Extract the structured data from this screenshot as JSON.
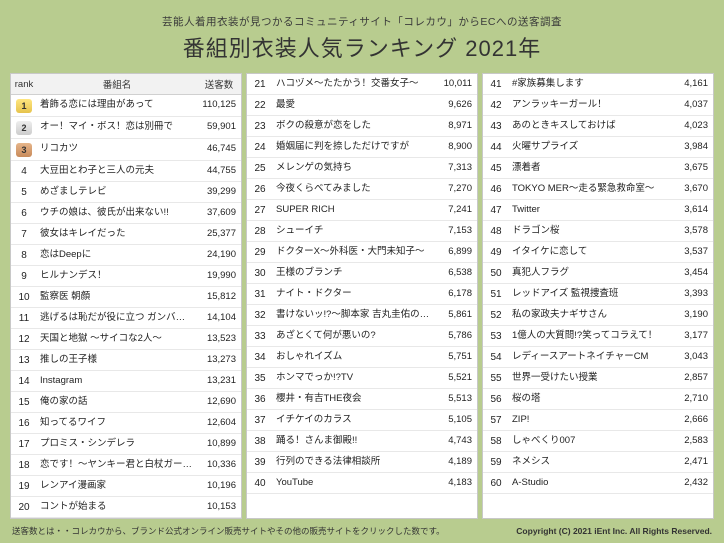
{
  "header": {
    "subtitle": "芸能人着用衣装が見つかるコミュニティサイト「コレカウ」からECへの送客調査",
    "title": "番組別衣装人気ランキング 2021年"
  },
  "columns_header": {
    "rank": "rank",
    "name": "番組名",
    "count": "送客数"
  },
  "rows": [
    {
      "rank": 1,
      "name": "着飾る恋には理由があって",
      "count": "110,125",
      "medal": "gold"
    },
    {
      "rank": 2,
      "name": "オー！マイ・ボス！恋は別冊で",
      "count": "59,901",
      "medal": "silver"
    },
    {
      "rank": 3,
      "name": "リコカツ",
      "count": "46,745",
      "medal": "bronze"
    },
    {
      "rank": 4,
      "name": "大豆田とわ子と三人の元夫",
      "count": "44,755"
    },
    {
      "rank": 5,
      "name": "めざましテレビ",
      "count": "39,299"
    },
    {
      "rank": 6,
      "name": "ウチの娘は、彼氏が出来ない!!",
      "count": "37,609"
    },
    {
      "rank": 7,
      "name": "彼女はキレイだった",
      "count": "25,377"
    },
    {
      "rank": 8,
      "name": "恋はDeepに",
      "count": "24,190"
    },
    {
      "rank": 9,
      "name": "ヒルナンデス！",
      "count": "19,990"
    },
    {
      "rank": 10,
      "name": "監察医 朝顔",
      "count": "15,812"
    },
    {
      "rank": 11,
      "name": "逃げるは恥だが役に立つ ガンバレ人類！新春スペシャル!!",
      "count": "14,104"
    },
    {
      "rank": 12,
      "name": "天国と地獄 ～サイコな2人～",
      "count": "13,523"
    },
    {
      "rank": 13,
      "name": "推しの王子様",
      "count": "13,273"
    },
    {
      "rank": 14,
      "name": "Instagram",
      "count": "13,231"
    },
    {
      "rank": 15,
      "name": "俺の家の話",
      "count": "12,690"
    },
    {
      "rank": 16,
      "name": "知ってるワイフ",
      "count": "12,604"
    },
    {
      "rank": 17,
      "name": "プロミス・シンデレラ",
      "count": "10,899"
    },
    {
      "rank": 18,
      "name": "恋です！～ヤンキー君と白杖ガール～",
      "count": "10,336"
    },
    {
      "rank": 19,
      "name": "レンアイ漫画家",
      "count": "10,196"
    },
    {
      "rank": 20,
      "name": "コントが始まる",
      "count": "10,153"
    },
    {
      "rank": 21,
      "name": "ハコヅメ～たたかう！交番女子～",
      "count": "10,011"
    },
    {
      "rank": 22,
      "name": "最愛",
      "count": "9,626"
    },
    {
      "rank": 23,
      "name": "ボクの殺意が恋をした",
      "count": "8,971"
    },
    {
      "rank": 24,
      "name": "婚姻届に判を捺しただけですが",
      "count": "8,900"
    },
    {
      "rank": 25,
      "name": "メレンゲの気持ち",
      "count": "7,313"
    },
    {
      "rank": 26,
      "name": "今夜くらべてみました",
      "count": "7,270"
    },
    {
      "rank": 27,
      "name": "SUPER RICH",
      "count": "7,241"
    },
    {
      "rank": 28,
      "name": "シューイチ",
      "count": "7,153"
    },
    {
      "rank": 29,
      "name": "ドクターX～外科医・大門未知子～",
      "count": "6,899"
    },
    {
      "rank": 30,
      "name": "王様のブランチ",
      "count": "6,538"
    },
    {
      "rank": 31,
      "name": "ナイト・ドクター",
      "count": "6,178"
    },
    {
      "rank": 32,
      "name": "書けないッ!?～脚本家 吉丸圭佑の筋書きのない生活～",
      "count": "5,861"
    },
    {
      "rank": 33,
      "name": "あざとくて何が悪いの?",
      "count": "5,786"
    },
    {
      "rank": 34,
      "name": "おしゃれイズム",
      "count": "5,751"
    },
    {
      "rank": 35,
      "name": "ホンマでっか!?TV",
      "count": "5,521"
    },
    {
      "rank": 36,
      "name": "櫻井・有吉THE夜会",
      "count": "5,513"
    },
    {
      "rank": 37,
      "name": "イチケイのカラス",
      "count": "5,105"
    },
    {
      "rank": 38,
      "name": "踊る！さんま御殿!!",
      "count": "4,743"
    },
    {
      "rank": 39,
      "name": "行列のできる法律相談所",
      "count": "4,189"
    },
    {
      "rank": 40,
      "name": "YouTube",
      "count": "4,183"
    },
    {
      "rank": 41,
      "name": "#家族募集します",
      "count": "4,161"
    },
    {
      "rank": 42,
      "name": "アンラッキーガール！",
      "count": "4,037"
    },
    {
      "rank": 43,
      "name": "あのときキスしておけば",
      "count": "4,023"
    },
    {
      "rank": 44,
      "name": "火曜サプライズ",
      "count": "3,984"
    },
    {
      "rank": 45,
      "name": "漂着者",
      "count": "3,675"
    },
    {
      "rank": 46,
      "name": "TOKYO MER～走る緊急救命室～",
      "count": "3,670"
    },
    {
      "rank": 47,
      "name": "Twitter",
      "count": "3,614"
    },
    {
      "rank": 48,
      "name": "ドラゴン桜",
      "count": "3,578"
    },
    {
      "rank": 49,
      "name": "イタイケに恋して",
      "count": "3,537"
    },
    {
      "rank": 50,
      "name": "真犯人フラグ",
      "count": "3,454"
    },
    {
      "rank": 51,
      "name": "レッドアイズ 監視捜査班",
      "count": "3,393"
    },
    {
      "rank": 52,
      "name": "私の家政夫ナギサさん",
      "count": "3,190"
    },
    {
      "rank": 53,
      "name": "1億人の大質問!?笑ってコラえて！",
      "count": "3,177"
    },
    {
      "rank": 54,
      "name": "レディースアートネイチャーCM",
      "count": "3,043"
    },
    {
      "rank": 55,
      "name": "世界一受けたい授業",
      "count": "2,857"
    },
    {
      "rank": 56,
      "name": "桜の塔",
      "count": "2,710"
    },
    {
      "rank": 57,
      "name": "ZIP!",
      "count": "2,666"
    },
    {
      "rank": 58,
      "name": "しゃべくり007",
      "count": "2,583"
    },
    {
      "rank": 59,
      "name": "ネメシス",
      "count": "2,471"
    },
    {
      "rank": 60,
      "name": "A-Studio",
      "count": "2,432"
    }
  ],
  "footer": {
    "note": "送客数とは・・コレカウから、ブランド公式オンライン販売サイトやその他の販売サイトをクリックした数です。",
    "copyright": "Copyright (C) 2021 iEnt Inc. All Rights Reserved."
  }
}
